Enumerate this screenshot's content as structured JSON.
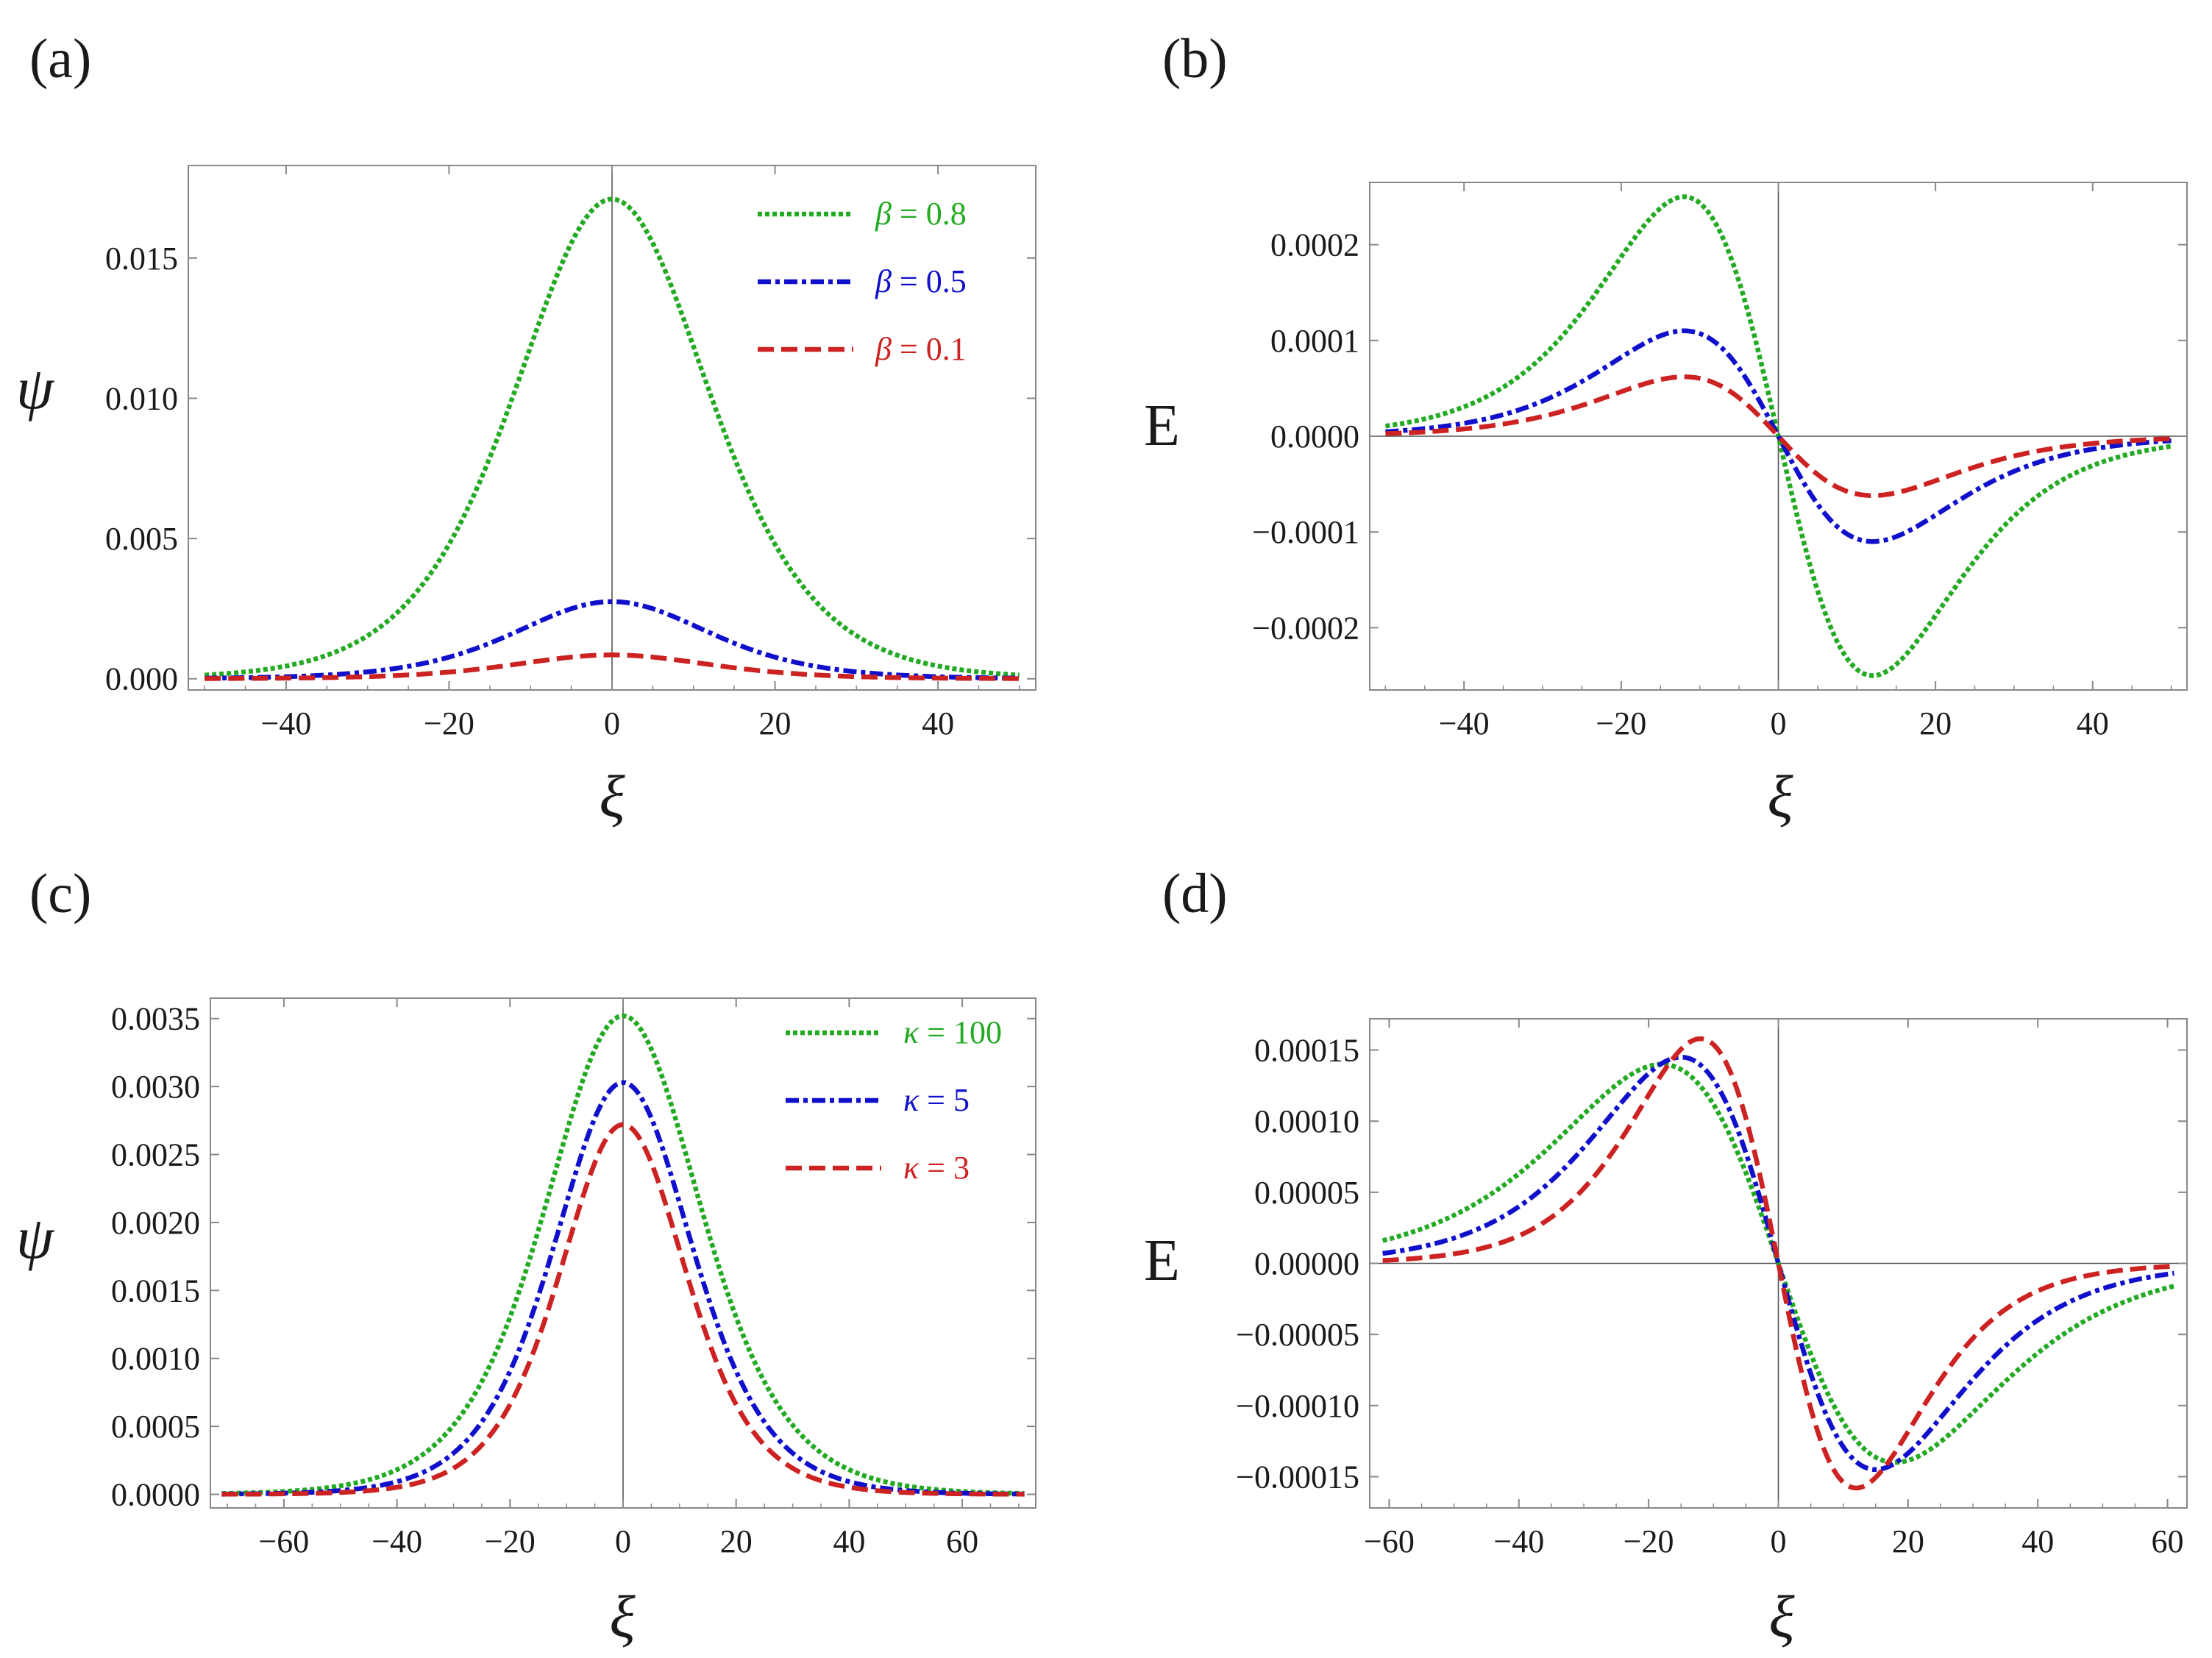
{
  "colors": {
    "green": "#22aa22",
    "blue": "#1010cc",
    "red": "#cc2222",
    "frame": "#888888",
    "zero_line": "#555555"
  },
  "chart_data": [
    {
      "id": "a",
      "type": "line",
      "panel_label": "(a)",
      "xlabel": "ξ",
      "ylabel": "ψ",
      "ylabel_style": "italic",
      "xlim": [
        -52,
        52
      ],
      "ylim": [
        -0.0004,
        0.0183
      ],
      "xticks": [
        -40,
        -20,
        0,
        20,
        40
      ],
      "xtick_labels": [
        "−40",
        "−20",
        "0",
        "20",
        "40"
      ],
      "yticks": [
        0,
        0.005,
        0.01,
        0.015
      ],
      "ytick_labels": [
        "0.000",
        "0.005",
        "0.010",
        "0.015"
      ],
      "zero_lines": {
        "x0": true,
        "y0": false
      },
      "legend_position": "top-right",
      "series": [
        {
          "name": "β = 0.8",
          "sym": "β",
          "rest": " = 0.8",
          "color": "#22aa22",
          "dash": "dotted",
          "shape": "pulse",
          "amp": 0.0171,
          "w": 16
        },
        {
          "name": "β = 0.5",
          "sym": "β",
          "rest": " = 0.5",
          "color": "#1010cc",
          "dash": "dashdot",
          "shape": "pulse",
          "amp": 0.00275,
          "w": 16
        },
        {
          "name": "β = 0.1",
          "sym": "β",
          "rest": " = 0.1",
          "color": "#cc2222",
          "dash": "dashed",
          "shape": "pulse",
          "amp": 0.00085,
          "w": 16
        }
      ]
    },
    {
      "id": "b",
      "type": "line",
      "panel_label": "(b)",
      "xlabel": "ξ",
      "ylabel": "E",
      "ylabel_style": "upright",
      "xlim": [
        -52,
        52
      ],
      "ylim": [
        -0.000265,
        0.000265
      ],
      "xticks": [
        -40,
        -20,
        0,
        20,
        40
      ],
      "xtick_labels": [
        "−40",
        "−20",
        "0",
        "20",
        "40"
      ],
      "yticks": [
        -0.0002,
        -0.0001,
        0,
        0.0001,
        0.0002
      ],
      "ytick_labels": [
        "−0.0002",
        "−0.0001",
        "0.0000",
        "0.0001",
        "0.0002"
      ],
      "zero_lines": {
        "x0": true,
        "y0": true
      },
      "legend_position": "none",
      "series": [
        {
          "name": "β = 0.8",
          "color": "#22aa22",
          "dash": "dotted",
          "shape": "kink",
          "peak": 0.00025,
          "xpeak": 12
        },
        {
          "name": "β = 0.5",
          "color": "#1010cc",
          "dash": "dashdot",
          "shape": "kink",
          "peak": 0.00011,
          "xpeak": 12
        },
        {
          "name": "β = 0.1",
          "color": "#cc2222",
          "dash": "dashed",
          "shape": "kink",
          "peak": 6.2e-05,
          "xpeak": 12
        }
      ]
    },
    {
      "id": "c",
      "type": "line",
      "panel_label": "(c)",
      "xlabel": "ξ",
      "ylabel": "ψ",
      "ylabel_style": "italic",
      "xlim": [
        -73,
        73
      ],
      "ylim": [
        -0.0001,
        0.00365
      ],
      "xticks": [
        -60,
        -40,
        -20,
        0,
        20,
        40,
        60
      ],
      "xtick_labels": [
        "−60",
        "−40",
        "−20",
        "0",
        "20",
        "40",
        "60"
      ],
      "yticks": [
        0,
        0.0005,
        0.001,
        0.0015,
        0.002,
        0.0025,
        0.003,
        0.0035
      ],
      "ytick_labels": [
        "0.0000",
        "0.0005",
        "0.0010",
        "0.0015",
        "0.0020",
        "0.0025",
        "0.0030",
        "0.0035"
      ],
      "zero_lines": {
        "x0": true,
        "y0": false
      },
      "legend_position": "top-right",
      "series": [
        {
          "name": "κ = 100",
          "sym": "κ",
          "rest": " = 100",
          "color": "#22aa22",
          "dash": "dotted",
          "shape": "pulse",
          "amp": 0.00352,
          "w": 18.5
        },
        {
          "name": "κ = 5",
          "sym": "κ",
          "rest": " = 5",
          "color": "#1010cc",
          "dash": "dashdot",
          "shape": "pulse",
          "amp": 0.00303,
          "w": 16.5
        },
        {
          "name": "κ = 3",
          "sym": "κ",
          "rest": " = 3",
          "color": "#cc2222",
          "dash": "dashed",
          "shape": "pulse",
          "amp": 0.00272,
          "w": 15
        }
      ]
    },
    {
      "id": "d",
      "type": "line",
      "panel_label": "(d)",
      "xlabel": "ξ",
      "ylabel": "E",
      "ylabel_style": "upright",
      "xlim": [
        -63,
        63
      ],
      "ylim": [
        -0.000172,
        0.000172
      ],
      "xticks": [
        -60,
        -40,
        -20,
        0,
        20,
        40,
        60
      ],
      "xtick_labels": [
        "−60",
        "−40",
        "−20",
        "0",
        "20",
        "40",
        "60"
      ],
      "yticks": [
        -0.00015,
        -0.0001,
        -5e-05,
        0,
        5e-05,
        0.0001,
        0.00015
      ],
      "ytick_labels": [
        "−0.00015",
        "−0.00010",
        "−0.00005",
        "0.00000",
        "0.00005",
        "0.00010",
        "0.00015"
      ],
      "zero_lines": {
        "x0": true,
        "y0": true
      },
      "legend_position": "none",
      "series": [
        {
          "name": "κ = 100",
          "color": "#22aa22",
          "dash": "dotted",
          "shape": "kink",
          "peak": 0.00014,
          "xpeak": 18
        },
        {
          "name": "κ = 5",
          "color": "#1010cc",
          "dash": "dashdot",
          "shape": "kink",
          "peak": 0.000145,
          "xpeak": 15
        },
        {
          "name": "κ = 3",
          "color": "#cc2222",
          "dash": "dashed",
          "shape": "kink",
          "peak": 0.000158,
          "xpeak": 12
        }
      ]
    }
  ]
}
